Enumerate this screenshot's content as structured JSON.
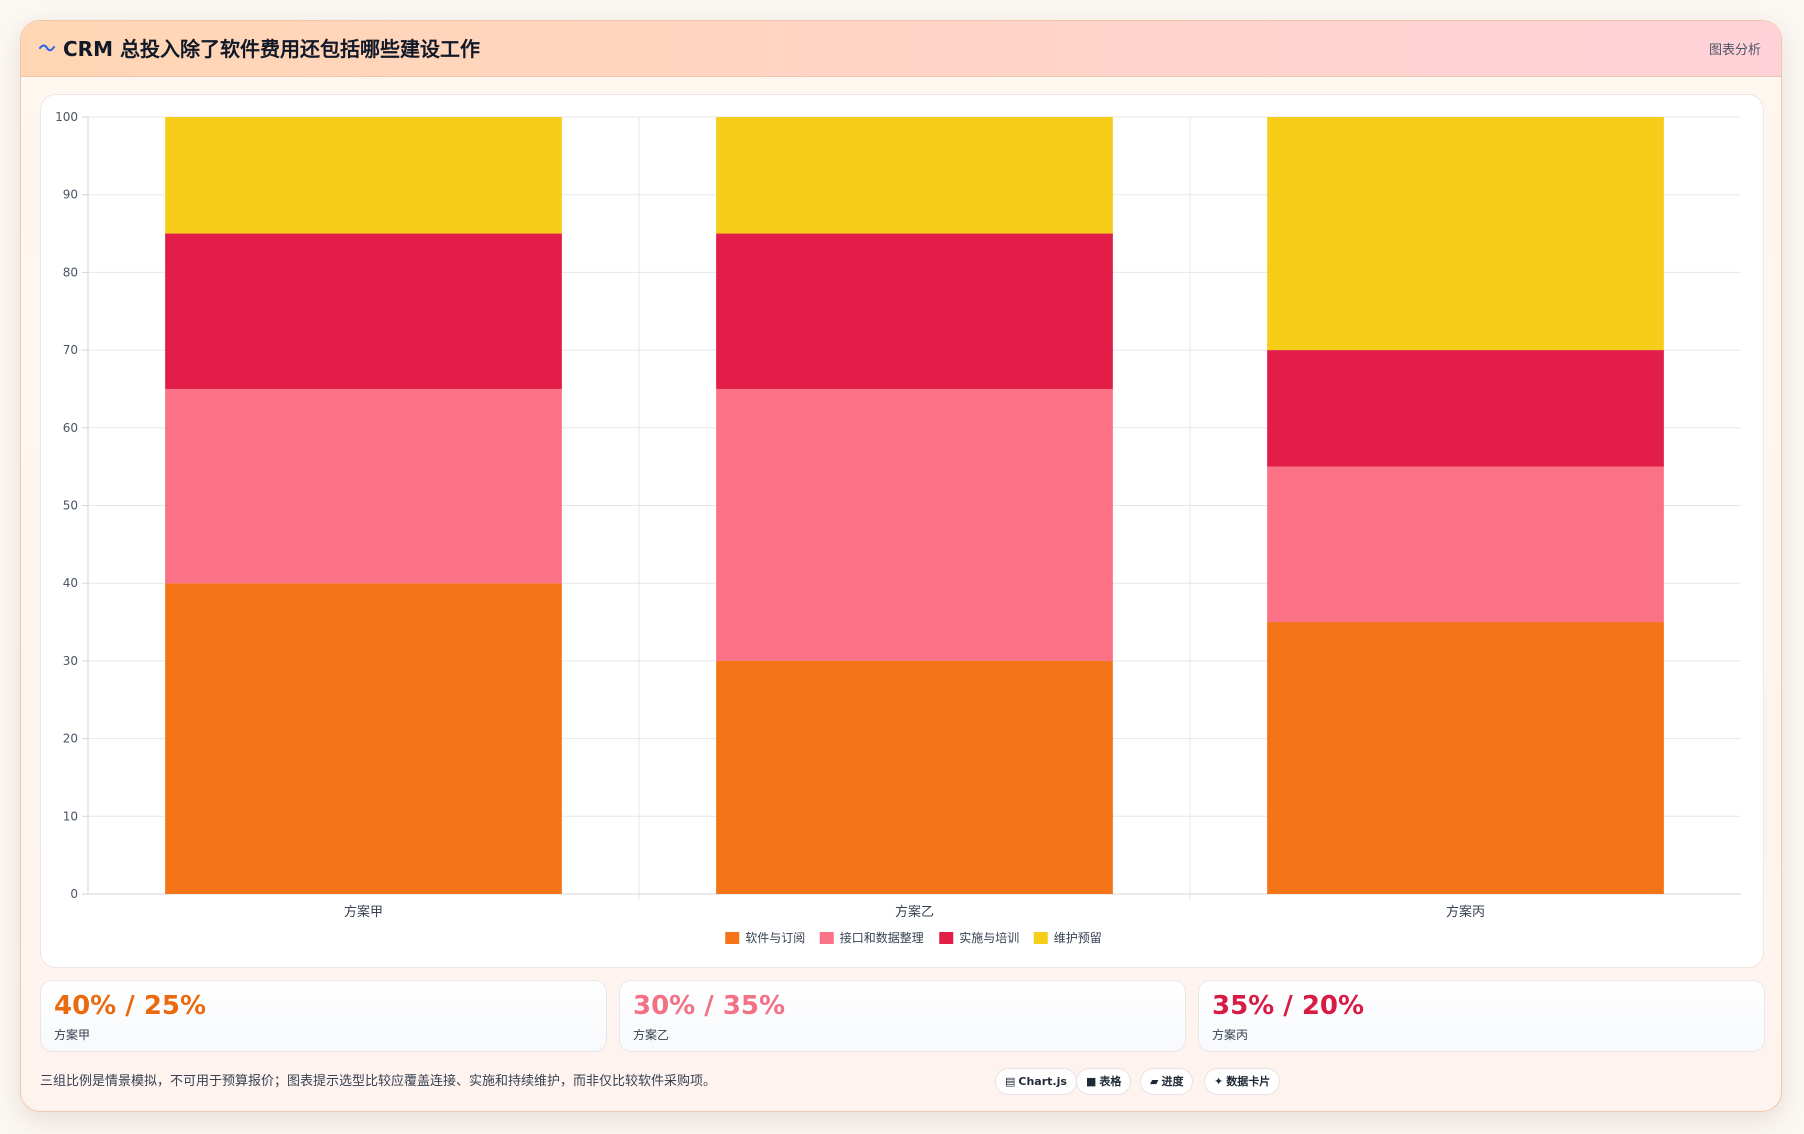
{
  "header": {
    "title": "CRM 总投入除了软件费用还包括哪些建设工作",
    "title_icon": "wave-icon",
    "action_label": "图表分析"
  },
  "chart_data": {
    "type": "bar",
    "stacked": true,
    "categories": [
      "方案甲",
      "方案乙",
      "方案丙"
    ],
    "series": [
      {
        "name": "软件与订阅",
        "values": [
          40,
          30,
          35
        ],
        "color": "#f57418"
      },
      {
        "name": "接口和数据整理",
        "values": [
          25,
          35,
          20
        ],
        "color": "#fb7185"
      },
      {
        "name": "实施与培训",
        "values": [
          20,
          20,
          15
        ],
        "color": "#e11d48"
      },
      {
        "name": "维护预留",
        "values": [
          15,
          15,
          30
        ],
        "color": "#f6cd19"
      }
    ],
    "ylim": [
      0,
      100
    ],
    "yticks": [
      "0",
      "10",
      "20",
      "30",
      "40",
      "50",
      "60",
      "70",
      "80",
      "90",
      "100"
    ],
    "grid": true,
    "legend_position": "bottom"
  },
  "stats": [
    {
      "value": "40% / 25%",
      "label": "方案甲",
      "color": "#ea6a10"
    },
    {
      "value": "30% / 35%",
      "label": "方案乙",
      "color": "#f37185"
    },
    {
      "value": "35% / 20%",
      "label": "方案丙",
      "color": "#d81b45"
    }
  ],
  "footnote": "三组比例是情景模拟，不可用于预算报价；图表提示选型比较应覆盖连接、实施和持续维护，而非仅比较软件采购项。",
  "chips": [
    {
      "icon": "chart-icon",
      "glyph": "▤",
      "label": "Chart.js"
    },
    {
      "icon": "table-icon",
      "glyph": "■",
      "label": "表格"
    },
    {
      "icon": "progress-icon",
      "glyph": "▰",
      "label": "进度"
    },
    {
      "icon": "sparkle-icon",
      "glyph": "✦",
      "label": "数据卡片"
    }
  ]
}
